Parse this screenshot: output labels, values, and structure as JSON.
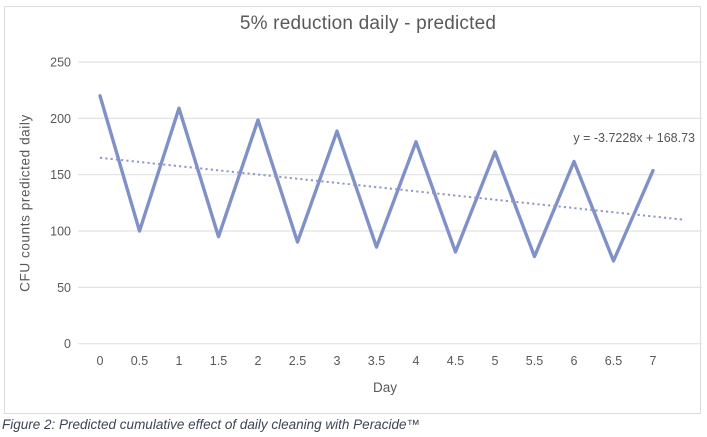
{
  "figure": {
    "caption": "Figure 2: Predicted cumulative effect of daily cleaning with Peracide™"
  },
  "colors": {
    "series": "#8091c7",
    "trendline": "#8e9ac5",
    "gridline": "#e2e2e2",
    "axis_text": "#595959",
    "border": "#dcdcdc"
  },
  "chart_data": {
    "type": "line",
    "title": "5% reduction daily - predicted",
    "xlabel": "Day",
    "ylabel": "CFU counts predicted daily",
    "x": [
      0,
      0.5,
      1,
      1.5,
      2,
      2.5,
      3,
      3.5,
      4,
      4.5,
      5,
      5.5,
      6,
      6.5,
      7
    ],
    "x_tick_labels": [
      "0",
      "0.5",
      "1",
      "1.5",
      "2",
      "2.5",
      "3",
      "3.5",
      "4",
      "4.5",
      "5",
      "5.5",
      "6",
      "6.5",
      "7"
    ],
    "series": [
      {
        "name": "CFU counts predicted daily",
        "values": [
          220,
          100,
          209,
          95,
          198.55,
          90.25,
          188.62,
          85.74,
          179.19,
          81.45,
          170.23,
          77.38,
          161.72,
          73.51,
          153.63
        ]
      }
    ],
    "trendline": {
      "label": "y = -3.7228x + 168.73",
      "slope_per_point": -3.7228,
      "intercept": 168.73,
      "start": {
        "x": 0,
        "value": 165.0
      },
      "end": {
        "x": 7.38,
        "value": 110.1
      }
    },
    "y_ticks": [
      0,
      50,
      100,
      150,
      200,
      250
    ],
    "y_tick_labels": [
      "0",
      "50",
      "100",
      "150",
      "200",
      "250"
    ],
    "ylim": [
      0,
      250
    ],
    "grid": "horizontal",
    "legend": "none",
    "line_style": "solid",
    "trendline_style": "dotted"
  }
}
